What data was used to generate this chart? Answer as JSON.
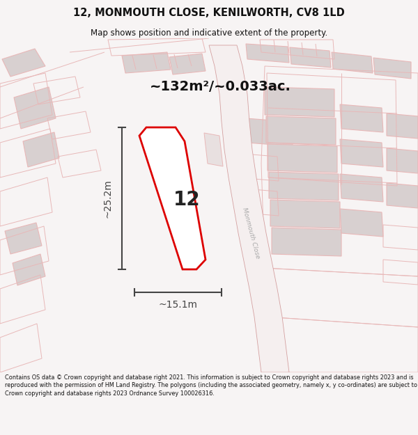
{
  "title": "12, MONMOUTH CLOSE, KENILWORTH, CV8 1LD",
  "subtitle": "Map shows position and indicative extent of the property.",
  "area_label": "~132m²/~0.033ac.",
  "width_label": "~15.1m",
  "height_label": "~25.2m",
  "number_label": "12",
  "footer_text": "Contains OS data © Crown copyright and database right 2021. This information is subject to Crown copyright and database rights 2023 and is reproduced with the permission of HM Land Registry. The polygons (including the associated geometry, namely x, y co-ordinates) are subject to Crown copyright and database rights 2023 Ordnance Survey 100026316.",
  "bg_color": "#f7f4f4",
  "map_bg": "#f7f4f4",
  "plot_color": "#dd0000",
  "plot_fill": "#ffffff",
  "road_outline_color": "#e8b8b8",
  "building_outline_color": "#e8b8b8",
  "building_fill_solid": "#d8d0d0",
  "building_fill_light": "#f0eaea",
  "dim_color": "#444444",
  "title_color": "#111111",
  "footer_color": "#111111",
  "road_label_color": "#aaaaaa",
  "monmouth_close_label": "Monmouth Close"
}
